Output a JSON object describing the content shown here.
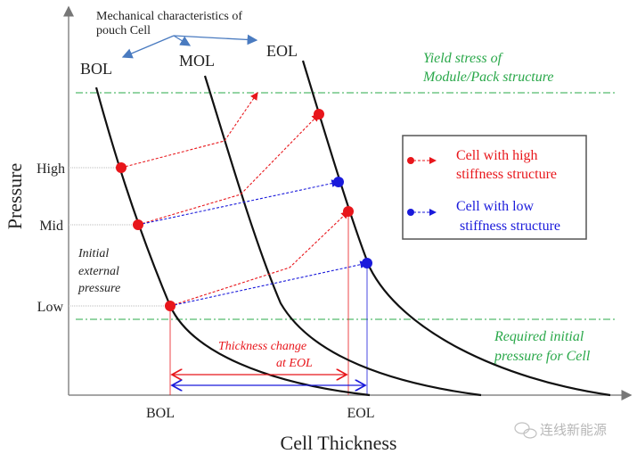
{
  "title_note": {
    "line1": "Mechanical characteristics  of",
    "line2": "pouch Cell"
  },
  "curves": {
    "bol": "BOL",
    "mol": "MOL",
    "eol": "EOL"
  },
  "axes": {
    "y_label": "Pressure",
    "x_label": "Cell Thickness",
    "y_ticks": [
      "High",
      "Mid",
      "Low"
    ],
    "x_ticks": [
      "BOL",
      "EOL"
    ]
  },
  "annotations": {
    "yield_line1": "Yield stress of",
    "yield_line2": "Module/Pack structure",
    "required_line1": "Required initial",
    "required_line2": "pressure for Cell",
    "initial_line1": "Initial",
    "initial_line2": "external",
    "initial_line3": "pressure",
    "thickness_line1": "Thickness change",
    "thickness_line2": "at EOL"
  },
  "legend": {
    "high_line1": "Cell with high",
    "high_line2": "stiffness structure",
    "low_line1": "Cell with low",
    "low_line2": " stiffness structure"
  },
  "watermark": "连线新能源",
  "colors": {
    "high": "#e8161b",
    "low": "#1a1adb",
    "threshold": "#2aa84a",
    "note_arrow": "#4a7bc0"
  }
}
